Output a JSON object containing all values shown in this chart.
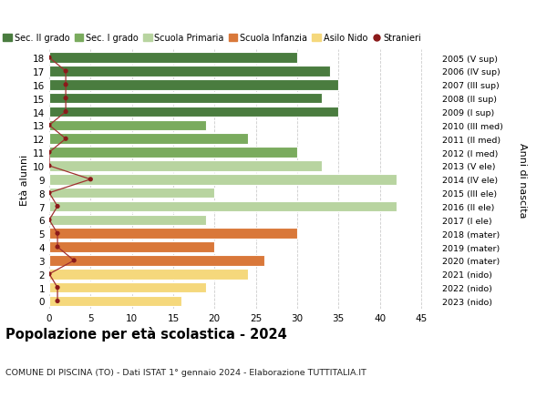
{
  "ages": [
    18,
    17,
    16,
    15,
    14,
    13,
    12,
    11,
    10,
    9,
    8,
    7,
    6,
    5,
    4,
    3,
    2,
    1,
    0
  ],
  "years": [
    "2005 (V sup)",
    "2006 (IV sup)",
    "2007 (III sup)",
    "2008 (II sup)",
    "2009 (I sup)",
    "2010 (III med)",
    "2011 (II med)",
    "2012 (I med)",
    "2013 (V ele)",
    "2014 (IV ele)",
    "2015 (III ele)",
    "2016 (II ele)",
    "2017 (I ele)",
    "2018 (mater)",
    "2019 (mater)",
    "2020 (mater)",
    "2021 (nido)",
    "2022 (nido)",
    "2023 (nido)"
  ],
  "bar_values": [
    30,
    34,
    35,
    33,
    35,
    19,
    24,
    30,
    33,
    42,
    20,
    42,
    19,
    30,
    20,
    26,
    24,
    19,
    16
  ],
  "stranieri": [
    0,
    2,
    2,
    2,
    2,
    0,
    2,
    0,
    0,
    5,
    0,
    1,
    0,
    1,
    1,
    3,
    0,
    1,
    1
  ],
  "bar_colors": [
    "#4a7c3f",
    "#4a7c3f",
    "#4a7c3f",
    "#4a7c3f",
    "#4a7c3f",
    "#7aab5e",
    "#7aab5e",
    "#7aab5e",
    "#b8d4a0",
    "#b8d4a0",
    "#b8d4a0",
    "#b8d4a0",
    "#b8d4a0",
    "#d9783a",
    "#d9783a",
    "#d9783a",
    "#f5d87c",
    "#f5d87c",
    "#f5d87c"
  ],
  "legend_labels": [
    "Sec. II grado",
    "Sec. I grado",
    "Scuola Primaria",
    "Scuola Infanzia",
    "Asilo Nido",
    "Stranieri"
  ],
  "legend_colors": [
    "#4a7c3f",
    "#7aab5e",
    "#b8d4a0",
    "#d9783a",
    "#f5d87c",
    "#a02020"
  ],
  "title": "Popolazione per età scolastica - 2024",
  "subtitle": "COMUNE DI PISCINA (TO) - Dati ISTAT 1° gennaio 2024 - Elaborazione TUTTITALIA.IT",
  "ylabel_left": "Età alunni",
  "ylabel_right": "Anni di nascita",
  "xlim": [
    0,
    47
  ],
  "xticks": [
    0,
    5,
    10,
    15,
    20,
    25,
    30,
    35,
    40,
    45
  ],
  "stranieri_color": "#8b1a1a",
  "stranieri_line_color": "#a03030",
  "background_color": "#ffffff",
  "grid_color": "#cccccc"
}
